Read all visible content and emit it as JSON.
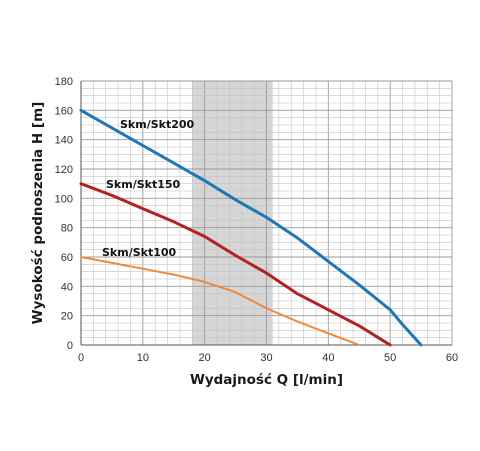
{
  "chart_data": {
    "type": "line",
    "xlabel": "Wydajność Q [l/min]",
    "ylabel": "Wysokość podnoszenia H [m]",
    "xlim": [
      0,
      60
    ],
    "ylim": [
      0,
      180
    ],
    "x_ticks": [
      0,
      10,
      20,
      30,
      40,
      50,
      60
    ],
    "y_ticks": [
      0,
      20,
      40,
      60,
      80,
      100,
      120,
      140,
      160,
      180
    ],
    "grid": true,
    "shaded_band": {
      "x_from": 18,
      "x_to": 31,
      "color": "#d6d6d6"
    },
    "series": [
      {
        "name": "Skm/Skt200",
        "color": "#1f77b4",
        "points": [
          [
            0,
            160
          ],
          [
            5,
            148
          ],
          [
            10,
            136
          ],
          [
            15,
            124
          ],
          [
            20,
            112
          ],
          [
            25,
            99
          ],
          [
            30,
            87
          ],
          [
            35,
            73
          ],
          [
            40,
            57
          ],
          [
            45,
            41
          ],
          [
            50,
            24
          ],
          [
            52,
            14
          ],
          [
            55,
            0
          ]
        ]
      },
      {
        "name": "Skm/Skt150",
        "color": "#b22222",
        "points": [
          [
            0,
            110
          ],
          [
            5,
            102
          ],
          [
            10,
            93
          ],
          [
            15,
            84
          ],
          [
            20,
            74
          ],
          [
            25,
            61
          ],
          [
            30,
            49
          ],
          [
            35,
            35
          ],
          [
            40,
            24
          ],
          [
            45,
            13
          ],
          [
            50,
            0
          ]
        ]
      },
      {
        "name": "Skm/Skt100",
        "color": "#ed8a3f",
        "points": [
          [
            0,
            60
          ],
          [
            5,
            56
          ],
          [
            10,
            52
          ],
          [
            15,
            48
          ],
          [
            20,
            43
          ],
          [
            25,
            36
          ],
          [
            30,
            25
          ],
          [
            35,
            16
          ],
          [
            40,
            8
          ],
          [
            45,
            0
          ]
        ]
      }
    ]
  }
}
